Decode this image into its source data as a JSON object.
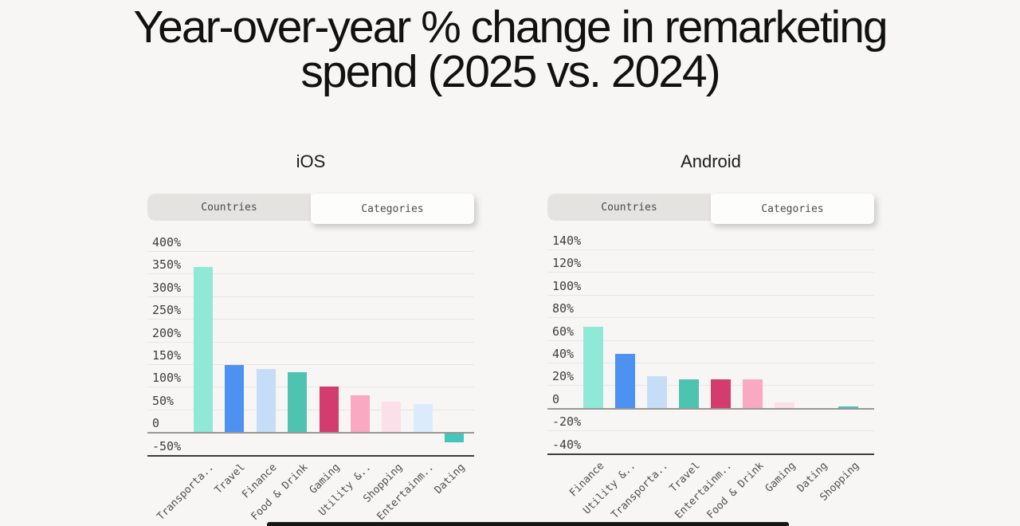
{
  "page": {
    "title": "Year-over-year % change in remarketing spend (2025 vs. 2024)",
    "background": "#f7f6f4"
  },
  "colors": {
    "palette": [
      "#8fe9d6",
      "#4d92f0",
      "#c6ddf8",
      "#4ec3b0",
      "#d23c6e",
      "#f9a9c2",
      "#fbdfe9",
      "#dcebfb",
      "#43c6bb"
    ],
    "grid_line": "#e8e7e3",
    "zero_line": "#9a9893",
    "axis_bottom_line": "#3d3c3a",
    "tab_inactive_bg": "#e5e3e0",
    "tab_active_bg": "#fdfdfc",
    "title_text": "#111110",
    "tick_text": "#3e3d3a"
  },
  "chart_data": [
    {
      "type": "bar",
      "title": "iOS",
      "tabs": [
        "Countries",
        "Categories"
      ],
      "active_tab": "Categories",
      "categories": [
        "Transporta..",
        "Travel",
        "Finance",
        "Food & Drink",
        "Gaming",
        "Utility &..",
        "Shopping",
        "Entertainm..",
        "Dating"
      ],
      "values": [
        365,
        148,
        140,
        132,
        100,
        82,
        68,
        62,
        -22
      ],
      "unit": "%",
      "ytick_labels": [
        "400%",
        "350%",
        "300%",
        "250%",
        "200%",
        "150%",
        "100%",
        "50%",
        "0",
        "-50%"
      ],
      "ytick_values": [
        400,
        350,
        300,
        250,
        200,
        150,
        100,
        50,
        0,
        -50
      ],
      "ylim": [
        -50,
        400
      ],
      "grid": "horizontal",
      "legend": "none"
    },
    {
      "type": "bar",
      "title": "Android",
      "tabs": [
        "Countries",
        "Categories"
      ],
      "active_tab": "Categories",
      "categories": [
        "Finance",
        "Utility &..",
        "Transporta..",
        "Travel",
        "Entertainm..",
        "Food & Drink",
        "Gaming",
        "Dating",
        "Shopping"
      ],
      "values": [
        72,
        48,
        28,
        25,
        25,
        25,
        5,
        0,
        1
      ],
      "unit": "%",
      "ytick_labels": [
        "140%",
        "120%",
        "100%",
        "80%",
        "60%",
        "40%",
        "20%",
        "0",
        "-20%",
        "-40%"
      ],
      "ytick_values": [
        140,
        120,
        100,
        80,
        60,
        40,
        20,
        0,
        -20,
        -40
      ],
      "ylim": [
        -40,
        140
      ],
      "grid": "horizontal",
      "legend": "none"
    }
  ]
}
